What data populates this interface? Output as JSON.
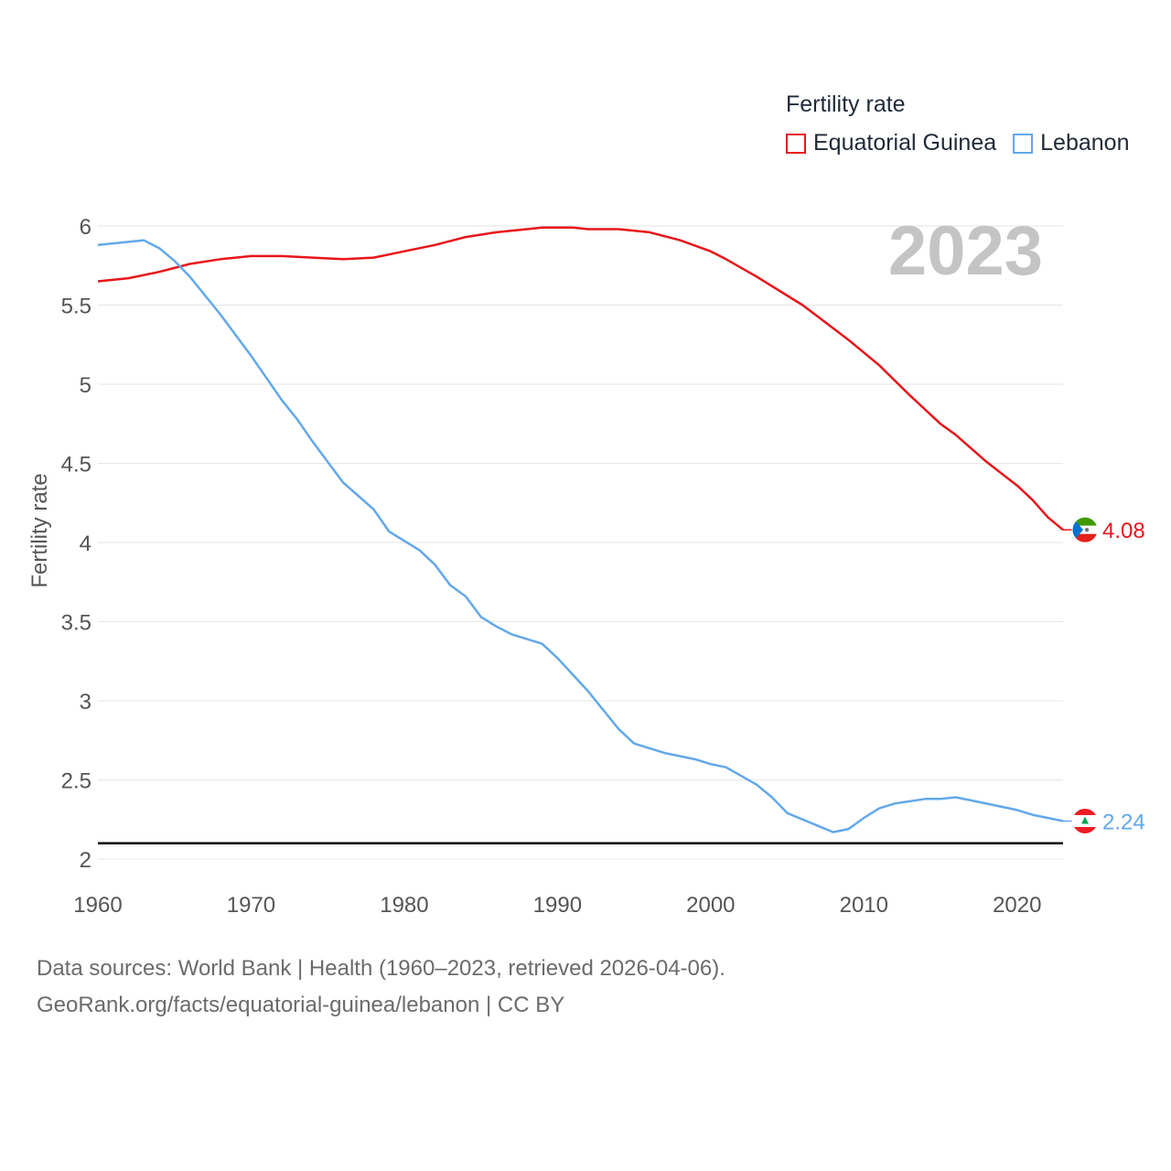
{
  "legend": {
    "title": "Fertility rate",
    "items": [
      {
        "label": "Equatorial Guinea",
        "color": "#e8151b"
      },
      {
        "label": "Lebanon",
        "color": "#63a8ea"
      }
    ]
  },
  "source": {
    "line1": "Data sources: World Bank | Health (1960–2023, retrieved 2026-04-06).",
    "line2": "GeoRank.org/facts/equatorial-guinea/lebanon | CC BY"
  },
  "chart_data": {
    "type": "line",
    "title": "",
    "year_label": "2023",
    "xlabel": "",
    "ylabel": "Fertility rate",
    "xlim": [
      1960,
      2023
    ],
    "ylim": [
      2,
      6
    ],
    "x_ticks": [
      1960,
      1970,
      1980,
      1990,
      2000,
      2010,
      2020
    ],
    "y_ticks": [
      2,
      2.5,
      3,
      3.5,
      4,
      4.5,
      5,
      5.5,
      6
    ],
    "y_tick_labels": [
      "2",
      "2.5",
      "3",
      "3.5",
      "4",
      "4.5",
      "5",
      "5.5",
      "6"
    ],
    "reference_line": 2.1,
    "grid": true,
    "series": [
      {
        "name": "Equatorial Guinea",
        "color": "#e8151b",
        "end_label": "4.08",
        "flag": "equatorial-guinea-flag-icon",
        "points": [
          [
            1960,
            5.65
          ],
          [
            1962,
            5.67
          ],
          [
            1964,
            5.71
          ],
          [
            1966,
            5.76
          ],
          [
            1968,
            5.79
          ],
          [
            1970,
            5.81
          ],
          [
            1972,
            5.81
          ],
          [
            1974,
            5.8
          ],
          [
            1976,
            5.79
          ],
          [
            1978,
            5.8
          ],
          [
            1980,
            5.84
          ],
          [
            1982,
            5.88
          ],
          [
            1984,
            5.93
          ],
          [
            1986,
            5.96
          ],
          [
            1988,
            5.98
          ],
          [
            1989,
            5.99
          ],
          [
            1991,
            5.99
          ],
          [
            1992,
            5.98
          ],
          [
            1994,
            5.98
          ],
          [
            1996,
            5.96
          ],
          [
            1998,
            5.91
          ],
          [
            2000,
            5.84
          ],
          [
            2001,
            5.79
          ],
          [
            2003,
            5.68
          ],
          [
            2006,
            5.5
          ],
          [
            2009,
            5.28
          ],
          [
            2011,
            5.12
          ],
          [
            2013,
            4.93
          ],
          [
            2015,
            4.75
          ],
          [
            2016,
            4.68
          ],
          [
            2018,
            4.51
          ],
          [
            2020,
            4.36
          ],
          [
            2021,
            4.27
          ],
          [
            2022,
            4.16
          ],
          [
            2023,
            4.08
          ]
        ]
      },
      {
        "name": "Lebanon",
        "color": "#63a8ea",
        "end_label": "2.24",
        "flag": "lebanon-flag-icon",
        "points": [
          [
            1960,
            5.88
          ],
          [
            1963,
            5.91
          ],
          [
            1964,
            5.86
          ],
          [
            1965,
            5.78
          ],
          [
            1966,
            5.68
          ],
          [
            1968,
            5.44
          ],
          [
            1970,
            5.18
          ],
          [
            1972,
            4.9
          ],
          [
            1973,
            4.78
          ],
          [
            1974,
            4.64
          ],
          [
            1976,
            4.38
          ],
          [
            1978,
            4.21
          ],
          [
            1979,
            4.07
          ],
          [
            1981,
            3.95
          ],
          [
            1982,
            3.86
          ],
          [
            1983,
            3.73
          ],
          [
            1984,
            3.66
          ],
          [
            1985,
            3.53
          ],
          [
            1986,
            3.47
          ],
          [
            1987,
            3.42
          ],
          [
            1989,
            3.36
          ],
          [
            1990,
            3.27
          ],
          [
            1992,
            3.06
          ],
          [
            1993,
            2.94
          ],
          [
            1994,
            2.82
          ],
          [
            1995,
            2.73
          ],
          [
            1997,
            2.67
          ],
          [
            1999,
            2.63
          ],
          [
            2000,
            2.6
          ],
          [
            2001,
            2.58
          ],
          [
            2003,
            2.47
          ],
          [
            2004,
            2.39
          ],
          [
            2005,
            2.29
          ],
          [
            2007,
            2.21
          ],
          [
            2008,
            2.17
          ],
          [
            2009,
            2.19
          ],
          [
            2010,
            2.26
          ],
          [
            2011,
            2.32
          ],
          [
            2012,
            2.35
          ],
          [
            2014,
            2.38
          ],
          [
            2015,
            2.38
          ],
          [
            2016,
            2.39
          ],
          [
            2018,
            2.35
          ],
          [
            2020,
            2.31
          ],
          [
            2021,
            2.28
          ],
          [
            2023,
            2.24
          ]
        ]
      }
    ]
  }
}
